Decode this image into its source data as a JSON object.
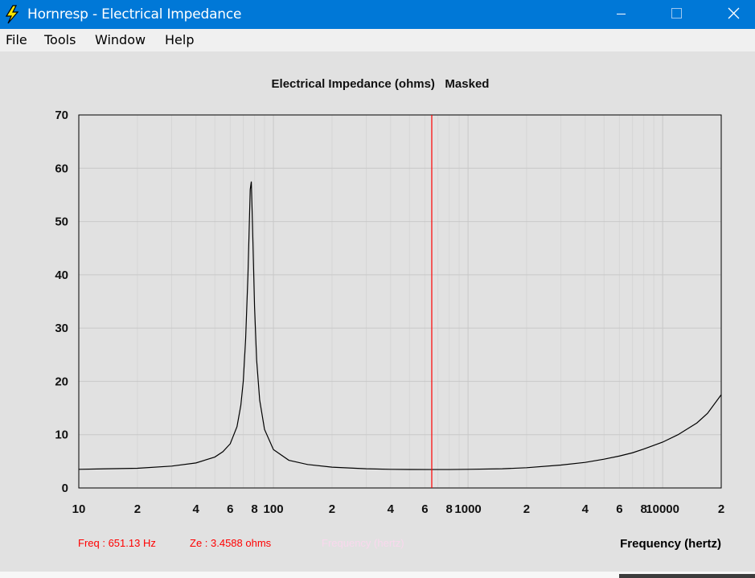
{
  "window": {
    "title": "Hornresp - Electrical Impedance",
    "icon": "lightning-bolt-icon",
    "controls": {
      "minimize_icon": "minimize-icon",
      "maximize_icon": "maximize-icon",
      "close_icon": "close-icon"
    }
  },
  "menu": {
    "items": [
      {
        "label": "File"
      },
      {
        "label": "Tools"
      },
      {
        "label": "Window"
      },
      {
        "label": "Help"
      }
    ]
  },
  "colors": {
    "titlebar": "#0078d7",
    "client_bg": "#e1e1e1",
    "curve": "#000000",
    "cursor_line": "#ff0000",
    "readout": "#ff0000"
  },
  "status": {
    "freq_readout": "Freq : 651.13 Hz",
    "ze_readout": "Ze : 3.4588 ohms",
    "faint_label": "Frequency (hertz)"
  },
  "chart_data": {
    "type": "line",
    "title": "Electrical Impedance (ohms)   Masked",
    "xlabel": "Frequency (hertz)",
    "ylabel": "",
    "x_scale": "log",
    "xlim": [
      10,
      20000
    ],
    "ylim": [
      0,
      70
    ],
    "yticks": [
      0,
      10,
      20,
      30,
      40,
      50,
      60,
      70
    ],
    "xticks": [
      {
        "value": 10,
        "label": "10"
      },
      {
        "value": 20,
        "label": "2"
      },
      {
        "value": 40,
        "label": "4"
      },
      {
        "value": 60,
        "label": "6"
      },
      {
        "value": 80,
        "label": "8"
      },
      {
        "value": 100,
        "label": "100"
      },
      {
        "value": 200,
        "label": "2"
      },
      {
        "value": 400,
        "label": "4"
      },
      {
        "value": 600,
        "label": "6"
      },
      {
        "value": 800,
        "label": "8"
      },
      {
        "value": 1000,
        "label": "1000"
      },
      {
        "value": 2000,
        "label": "2"
      },
      {
        "value": 4000,
        "label": "4"
      },
      {
        "value": 6000,
        "label": "6"
      },
      {
        "value": 8000,
        "label": "8"
      },
      {
        "value": 10000,
        "label": "10000"
      },
      {
        "value": 20000,
        "label": "2"
      }
    ],
    "grid": true,
    "cursor": {
      "x": 651.13,
      "y": 3.4588
    },
    "series": [
      {
        "x": [
          10,
          20,
          30,
          40,
          50,
          55,
          60,
          65,
          68,
          70,
          72,
          74,
          75,
          76,
          77,
          78,
          80,
          82,
          85,
          90,
          100,
          120,
          150,
          200,
          300,
          400,
          500,
          651.13,
          800,
          1000,
          1500,
          2000,
          3000,
          4000,
          5000,
          6000,
          7000,
          8000,
          10000,
          12000,
          15000,
          17000,
          20000
        ],
        "y": [
          3.5,
          3.7,
          4.1,
          4.7,
          5.8,
          6.8,
          8.3,
          11.5,
          15.5,
          20,
          28,
          40,
          48,
          56,
          57.5,
          50,
          34,
          24,
          16.5,
          11,
          7.2,
          5.2,
          4.4,
          3.9,
          3.6,
          3.5,
          3.47,
          3.4588,
          3.46,
          3.5,
          3.6,
          3.8,
          4.3,
          4.8,
          5.4,
          6,
          6.6,
          7.3,
          8.6,
          10,
          12.2,
          14,
          17.5
        ]
      }
    ]
  }
}
